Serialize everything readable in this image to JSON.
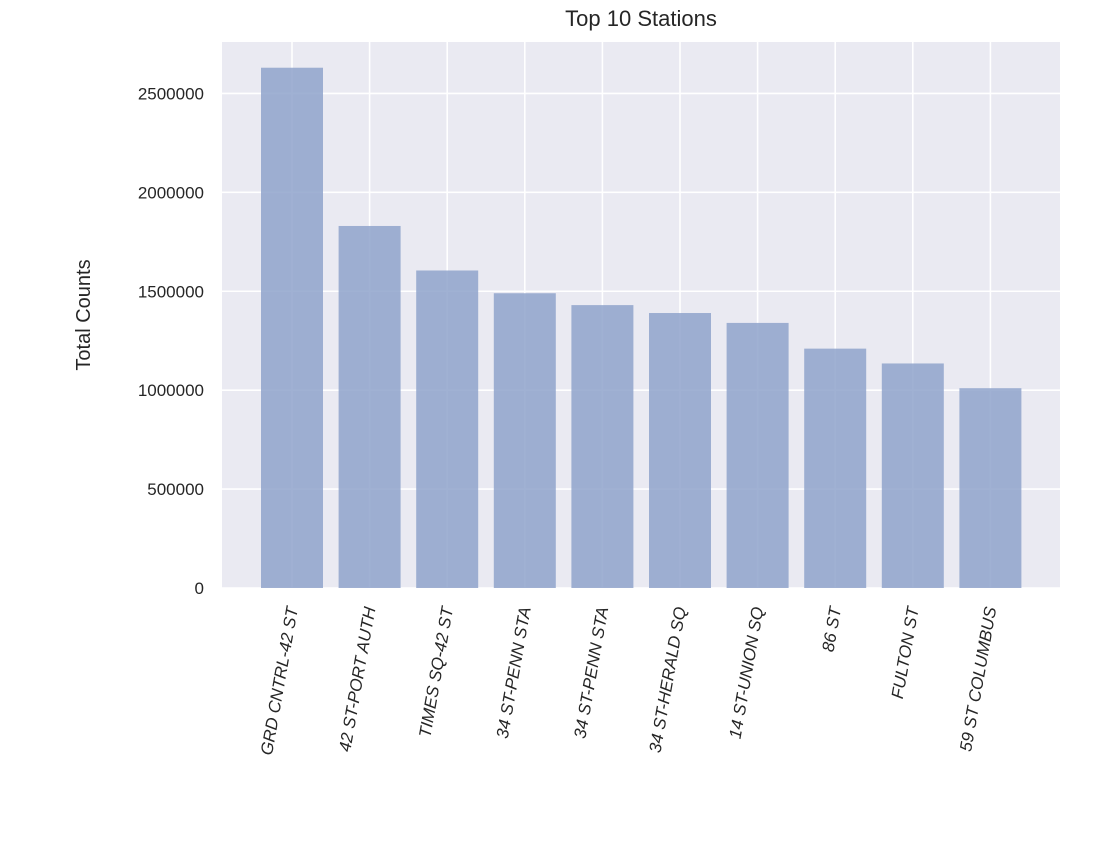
{
  "chart_data": {
    "type": "bar",
    "title": "Top 10 Stations",
    "xlabel": "",
    "ylabel": "Total Counts",
    "categories": [
      "GRD CNTRL-42 ST",
      "42 ST-PORT AUTH",
      "TIMES SQ-42 ST",
      "34 ST-PENN STA",
      "34 ST-PENN STA",
      "34 ST-HERALD SQ",
      "14 ST-UNION SQ",
      "86 ST",
      "FULTON ST",
      "59 ST COLUMBUS"
    ],
    "values": [
      2630000,
      1830000,
      1605000,
      1490000,
      1430000,
      1390000,
      1340000,
      1210000,
      1135000,
      1010000
    ],
    "yticks": [
      0,
      500000,
      1000000,
      1500000,
      2000000,
      2500000
    ],
    "ylim": [
      0,
      2760000
    ],
    "bar_color": "#8fa3cb",
    "bar_opacity": 0.85,
    "background_color": "#eaeaf2",
    "grid": true,
    "xtick_rotation": -80
  }
}
